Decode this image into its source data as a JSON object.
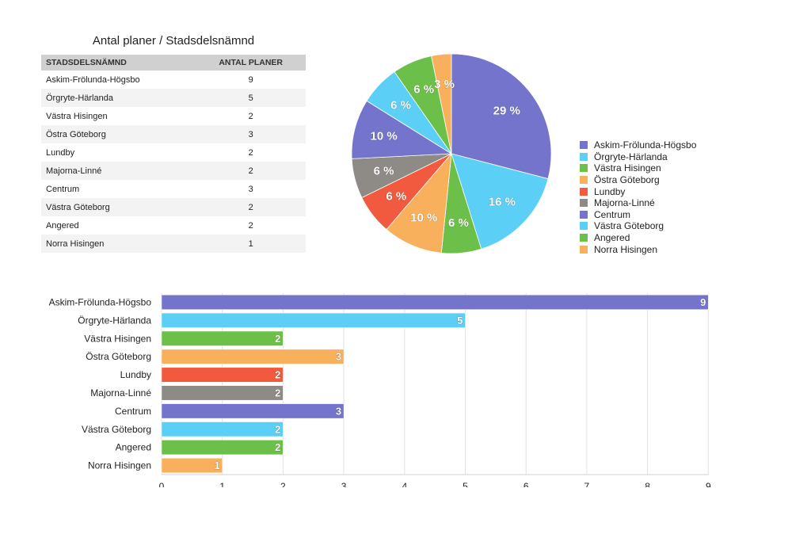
{
  "table": {
    "title": "Antal planer / Stadsdelsnämnd",
    "headers": [
      "STADSDELSNÄMND",
      "ANTAL PLANER"
    ],
    "rows": [
      [
        "Askim-Frölunda-Högsbo",
        "9"
      ],
      [
        "Örgryte-Härlanda",
        "5"
      ],
      [
        "Västra Hisingen",
        "2"
      ],
      [
        "Östra Göteborg",
        "3"
      ],
      [
        "Lundby",
        "2"
      ],
      [
        "Majorna-Linné",
        "2"
      ],
      [
        "Centrum",
        "3"
      ],
      [
        "Västra Göteborg",
        "2"
      ],
      [
        "Angered",
        "2"
      ],
      [
        "Norra Hisingen",
        "1"
      ]
    ]
  },
  "chart_data": [
    {
      "type": "pie",
      "categories": [
        "Askim-Frölunda-Högsbo",
        "Örgryte-Härlanda",
        "Västra Hisingen",
        "Östra Göteborg",
        "Lundby",
        "Majorna-Linné",
        "Centrum",
        "Västra Göteborg",
        "Angered",
        "Norra Hisingen"
      ],
      "values": [
        9,
        5,
        2,
        3,
        2,
        2,
        3,
        2,
        2,
        1
      ],
      "labels": [
        "29 %",
        "16 %",
        "6 %",
        "10 %",
        "6 %",
        "6 %",
        "10 %",
        "6 %",
        "6 %",
        "3 %"
      ],
      "colors": [
        "#7474cc",
        "#5bcff5",
        "#6cc04a",
        "#f9b05c",
        "#f15a3e",
        "#8e8a86",
        "#7474cc",
        "#5bcff5",
        "#6cc04a",
        "#f9b05c"
      ],
      "legend_position": "right"
    },
    {
      "type": "bar",
      "orientation": "horizontal",
      "categories": [
        "Askim-Frölunda-Högsbo",
        "Örgryte-Härlanda",
        "Västra Hisingen",
        "Östra Göteborg",
        "Lundby",
        "Majorna-Linné",
        "Centrum",
        "Västra Göteborg",
        "Angered",
        "Norra Hisingen"
      ],
      "values": [
        9,
        5,
        2,
        3,
        2,
        2,
        3,
        2,
        2,
        1
      ],
      "colors": [
        "#7474cc",
        "#5bcff5",
        "#6cc04a",
        "#f9b05c",
        "#f15a3e",
        "#8e8a86",
        "#7474cc",
        "#5bcff5",
        "#6cc04a",
        "#f9b05c"
      ],
      "xticks": [
        0,
        1,
        2,
        3,
        4,
        5,
        6,
        7,
        8,
        9
      ],
      "xlim": [
        0,
        9
      ],
      "grid": true
    }
  ]
}
